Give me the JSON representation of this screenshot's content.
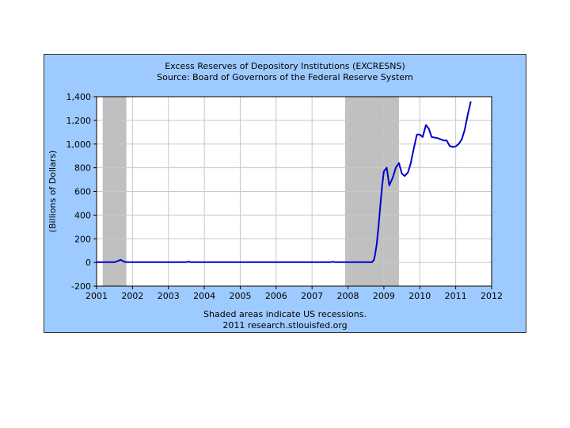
{
  "chart_data": {
    "type": "line",
    "title": "Excess Reserves of Depository Institutions (EXCRESNS)",
    "subtitle": "Source: Board of Governors of the Federal Reserve System",
    "xlabel": "",
    "ylabel": "(Billions of Dollars)",
    "xlim": [
      2001,
      2012
    ],
    "ylim": [
      -200,
      1400
    ],
    "x_ticks": [
      "2001",
      "2002",
      "2003",
      "2004",
      "2005",
      "2006",
      "2007",
      "2008",
      "2009",
      "2010",
      "2011",
      "2012"
    ],
    "y_ticks": [
      "-200",
      "0",
      "200",
      "400",
      "600",
      "800",
      "1,000",
      "1,200",
      "1,400"
    ],
    "grid": true,
    "recessions": [
      [
        2001.17,
        2001.83
      ],
      [
        2007.92,
        2009.42
      ]
    ],
    "line_color": "#0000cc",
    "shade_color": "#c0c0c0",
    "series": [
      {
        "points": [
          [
            2001.0,
            2
          ],
          [
            2001.5,
            2
          ],
          [
            2001.58,
            10
          ],
          [
            2001.67,
            22
          ],
          [
            2001.75,
            8
          ],
          [
            2001.83,
            2
          ],
          [
            2002.5,
            2
          ],
          [
            2003.5,
            2
          ],
          [
            2003.55,
            8
          ],
          [
            2003.62,
            2
          ],
          [
            2004.5,
            2
          ],
          [
            2005.5,
            2
          ],
          [
            2006.5,
            2
          ],
          [
            2007.0,
            2
          ],
          [
            2007.5,
            2
          ],
          [
            2007.58,
            6
          ],
          [
            2007.65,
            2
          ],
          [
            2008.0,
            2
          ],
          [
            2008.5,
            2
          ],
          [
            2008.67,
            2
          ],
          [
            2008.72,
            20
          ],
          [
            2008.75,
            60
          ],
          [
            2008.8,
            150
          ],
          [
            2008.85,
            300
          ],
          [
            2008.9,
            480
          ],
          [
            2008.95,
            640
          ],
          [
            2009.0,
            770
          ],
          [
            2009.08,
            800
          ],
          [
            2009.15,
            650
          ],
          [
            2009.25,
            720
          ],
          [
            2009.33,
            800
          ],
          [
            2009.42,
            840
          ],
          [
            2009.5,
            750
          ],
          [
            2009.58,
            730
          ],
          [
            2009.67,
            760
          ],
          [
            2009.75,
            840
          ],
          [
            2009.83,
            960
          ],
          [
            2009.92,
            1080
          ],
          [
            2010.0,
            1080
          ],
          [
            2010.08,
            1060
          ],
          [
            2010.17,
            1160
          ],
          [
            2010.25,
            1130
          ],
          [
            2010.33,
            1060
          ],
          [
            2010.5,
            1050
          ],
          [
            2010.58,
            1040
          ],
          [
            2010.67,
            1030
          ],
          [
            2010.75,
            1030
          ],
          [
            2010.83,
            985
          ],
          [
            2010.92,
            975
          ],
          [
            2011.0,
            980
          ],
          [
            2011.08,
            1000
          ],
          [
            2011.17,
            1040
          ],
          [
            2011.25,
            1120
          ],
          [
            2011.33,
            1240
          ],
          [
            2011.42,
            1360
          ]
        ]
      }
    ],
    "footnote1": "Shaded areas indicate US recessions.",
    "footnote2": "2011 research.stlouisfed.org"
  }
}
